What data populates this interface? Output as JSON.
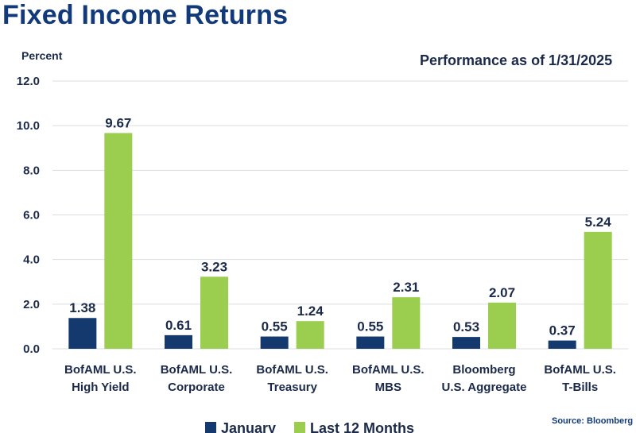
{
  "page": {
    "title": "Fixed Income Returns",
    "source": "Source: Bloomberg"
  },
  "colors": {
    "title": "#12397a",
    "january": "#14396f",
    "last12": "#9bcd4f",
    "grid": "#d9dde3",
    "text": "#1b2a4a"
  },
  "chart_data": {
    "type": "bar",
    "title": "Fixed Income Returns",
    "subtitle": "Performance as of 1/31/2025",
    "ylabel": "Percent",
    "xlabel": "",
    "ylim": [
      0,
      12
    ],
    "yticks": [
      "0.0",
      "2.0",
      "4.0",
      "6.0",
      "8.0",
      "10.0",
      "12.0"
    ],
    "ytick_values": [
      0,
      2,
      4,
      6,
      8,
      10,
      12
    ],
    "grid": true,
    "legend_position": "bottom",
    "categories": [
      [
        "BofAML U.S.",
        "High Yield"
      ],
      [
        "BofAML U.S.",
        "Corporate"
      ],
      [
        "BofAML U.S.",
        "Treasury"
      ],
      [
        "BofAML U.S.",
        "MBS"
      ],
      [
        "Bloomberg",
        "U.S. Aggregate"
      ],
      [
        "BofAML U.S.",
        "T-Bills"
      ]
    ],
    "series": [
      {
        "name": "January",
        "values": [
          1.38,
          0.61,
          0.55,
          0.55,
          0.53,
          0.37
        ],
        "labels": [
          "1.38",
          "0.61",
          "0.55",
          "0.55",
          "0.53",
          "0.37"
        ]
      },
      {
        "name": "Last 12 Months",
        "values": [
          9.67,
          3.23,
          1.24,
          2.31,
          2.07,
          5.24
        ],
        "labels": [
          "9.67",
          "3.23",
          "1.24",
          "2.31",
          "2.07",
          "5.24"
        ]
      }
    ]
  }
}
